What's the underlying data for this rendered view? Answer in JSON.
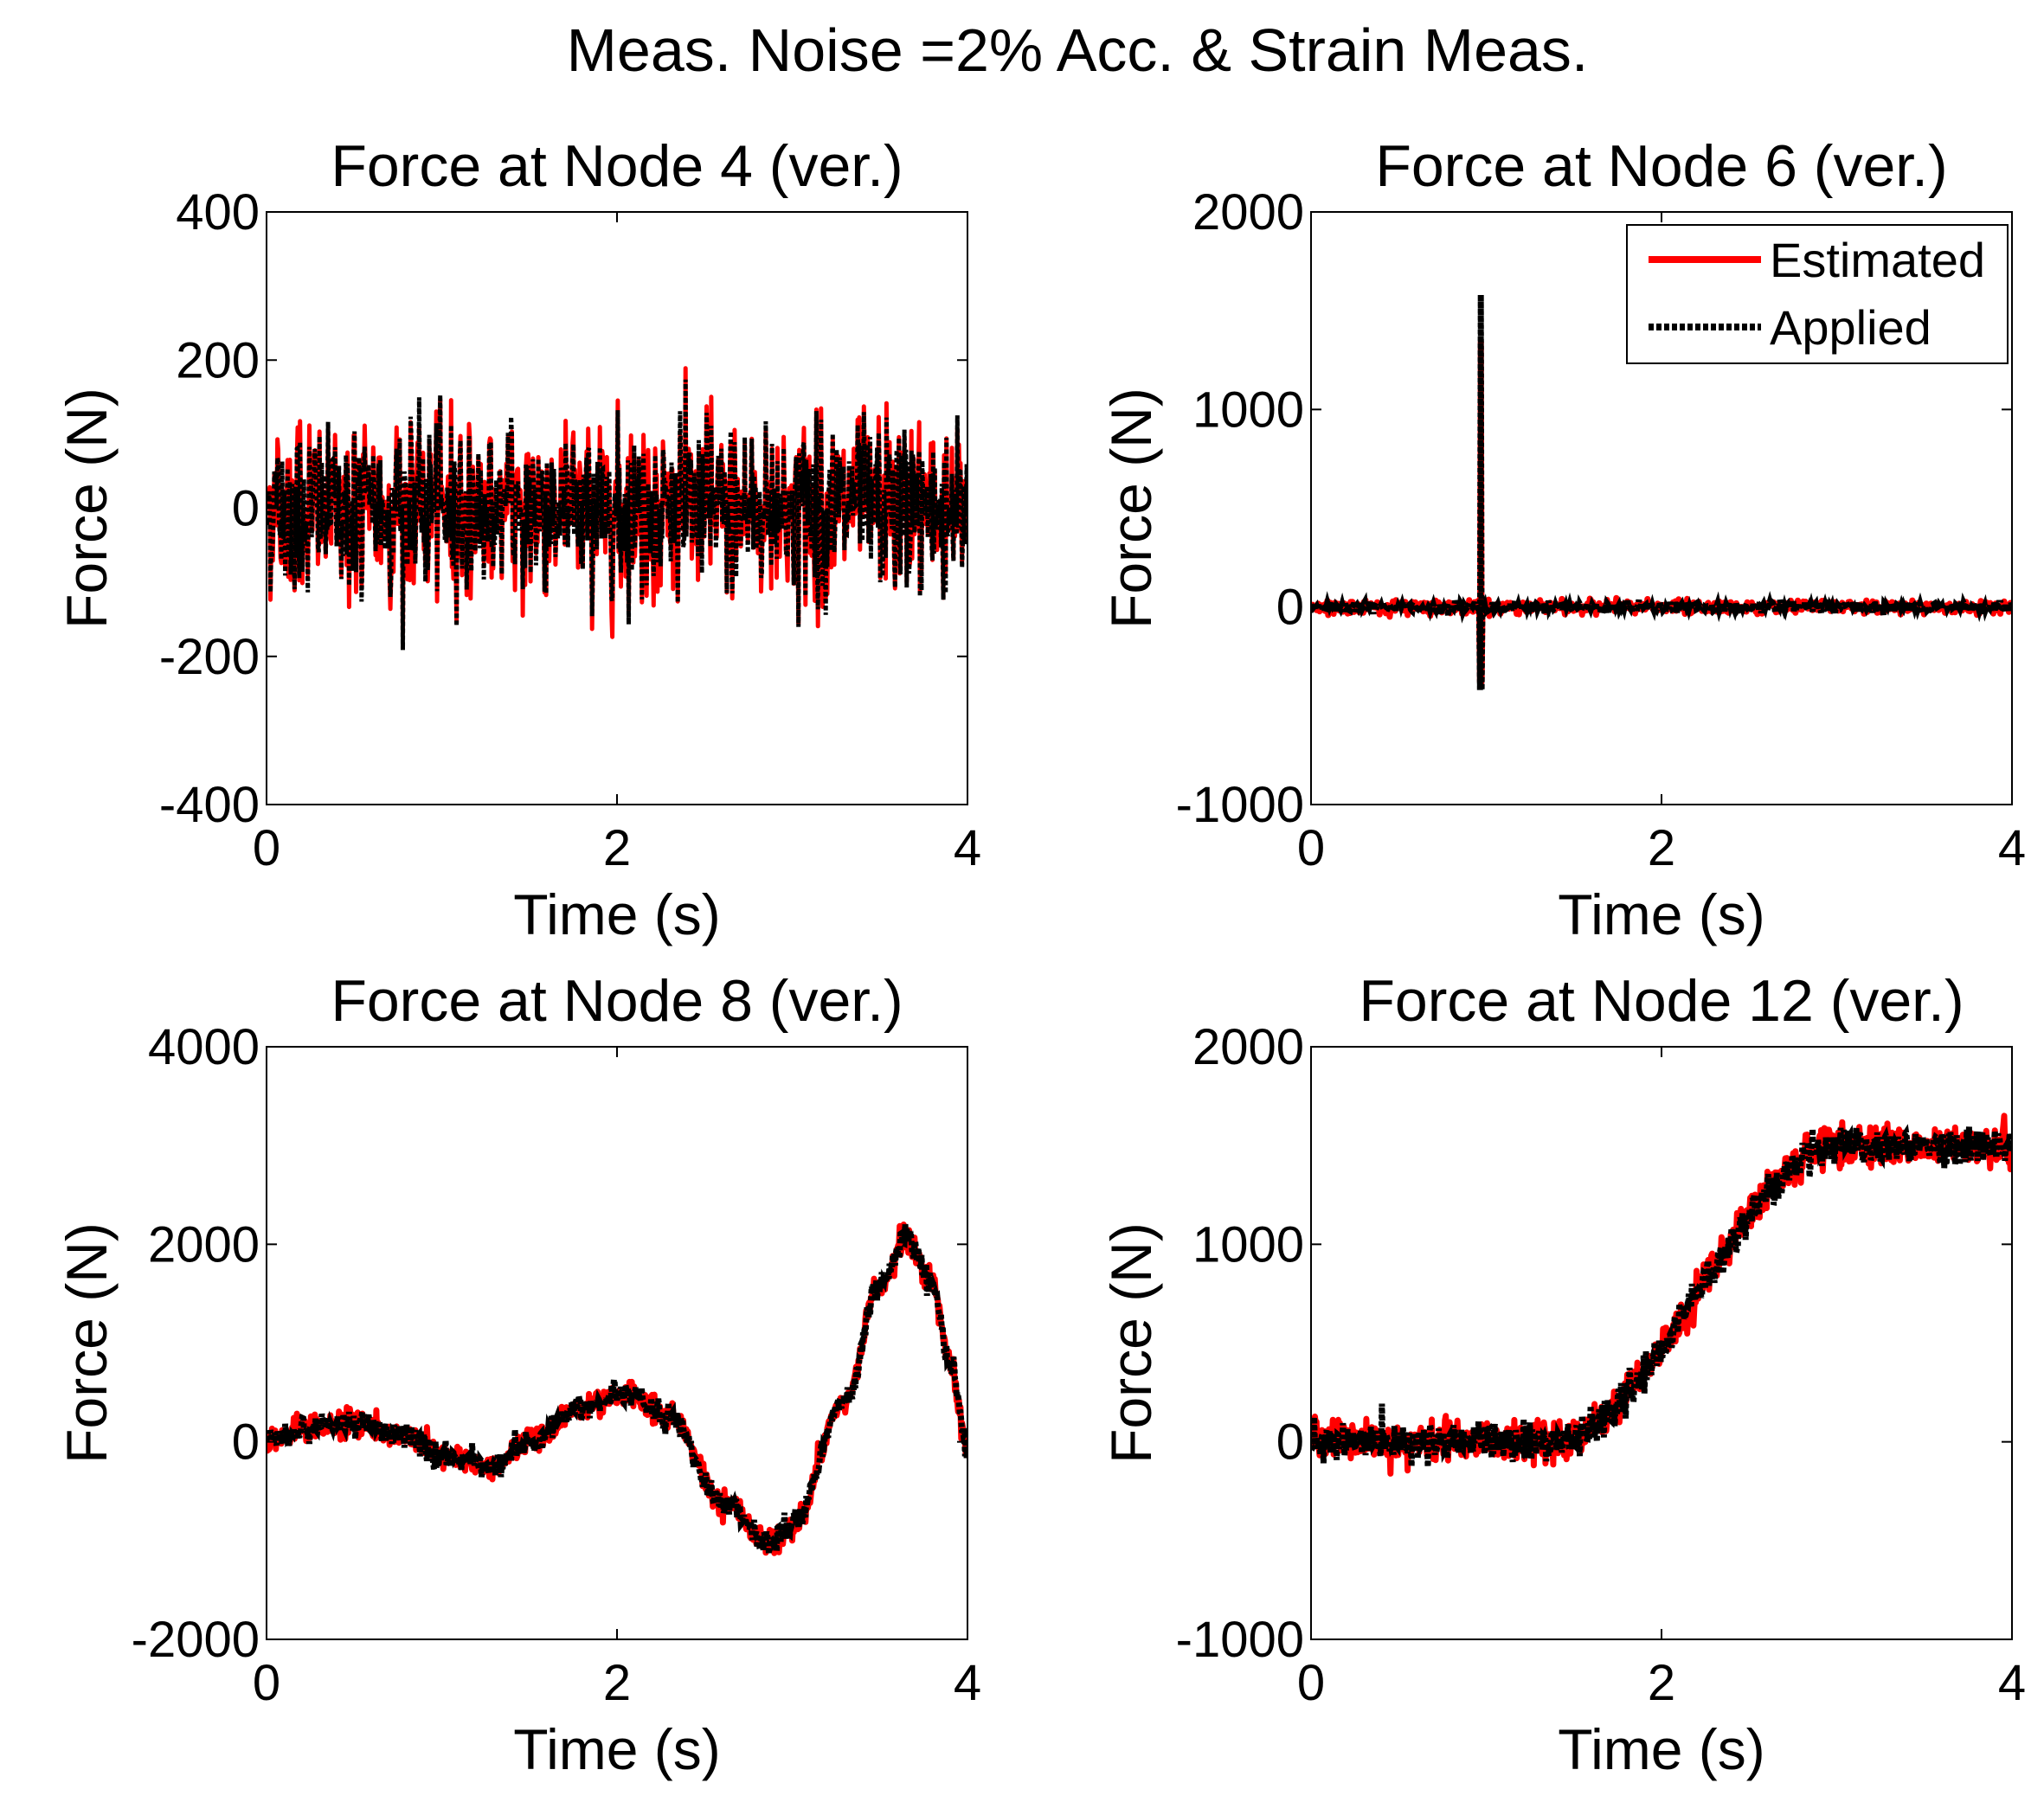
{
  "figure_title": "Meas. Noise =2%  Acc. & Strain Meas.",
  "colors": {
    "estimated": "#ff0000",
    "applied": "#000000",
    "axes": "#000000",
    "background": "#ffffff"
  },
  "legend": {
    "placement": "top-right of Node 6 panel",
    "entries": [
      "Estimated",
      "Applied"
    ]
  },
  "chart_data": [
    {
      "type": "line",
      "title": "Force at Node 4 (ver.)",
      "xlabel": "Time (s)",
      "ylabel": "Force (N)",
      "xlim": [
        0,
        4
      ],
      "ylim": [
        -400,
        400
      ],
      "xticks": [
        0,
        2,
        4
      ],
      "yticks": [
        -400,
        -200,
        0,
        200,
        400
      ],
      "xtick_labels": [
        "0",
        "2",
        "4"
      ],
      "ytick_labels": [
        "-400",
        "-200",
        "0",
        "200",
        "400"
      ],
      "signal": {
        "kind": "noise",
        "std": 55,
        "max_abs": 215
      },
      "series": [
        {
          "name": "Estimated",
          "style": "solid"
        },
        {
          "name": "Applied",
          "style": "dotted"
        }
      ]
    },
    {
      "type": "line",
      "title": "Force at Node 6 (ver.)",
      "xlabel": "Time (s)",
      "ylabel": "Force (N)",
      "xlim": [
        0,
        4
      ],
      "ylim": [
        -1000,
        2000
      ],
      "xticks": [
        0,
        2,
        4
      ],
      "yticks": [
        -1000,
        0,
        1000,
        2000
      ],
      "xtick_labels": [
        "0",
        "2",
        "4"
      ],
      "ytick_labels": [
        "-1000",
        "0",
        "1000",
        "2000"
      ],
      "signal": {
        "kind": "impulse",
        "t": 0.97,
        "peak": 1580,
        "min": -420,
        "noise_std": 12
      },
      "series": [
        {
          "name": "Estimated",
          "style": "solid"
        },
        {
          "name": "Applied",
          "style": "dotted"
        }
      ],
      "legend": true
    },
    {
      "type": "line",
      "title": "Force at Node 8 (ver.)",
      "xlabel": "Time (s)",
      "ylabel": "Force (N)",
      "xlim": [
        0,
        4
      ],
      "ylim": [
        -2000,
        4000
      ],
      "xticks": [
        0,
        2,
        4
      ],
      "yticks": [
        -2000,
        0,
        2000,
        4000
      ],
      "xtick_labels": [
        "0",
        "2",
        "4"
      ],
      "ytick_labels": [
        "-2000",
        "0",
        "2000",
        "4000"
      ],
      "signal": {
        "kind": "curve",
        "noise_std": 60,
        "t": [
          0,
          0.3,
          0.5,
          0.8,
          1.0,
          1.3,
          1.5,
          1.8,
          2.05,
          2.3,
          2.6,
          2.85,
          3.0,
          3.3,
          3.5,
          3.65,
          3.8,
          3.9,
          4.0
        ],
        "y": [
          50,
          150,
          200,
          50,
          -150,
          -250,
          0,
          350,
          500,
          250,
          -600,
          -1000,
          -850,
          400,
          1600,
          2050,
          1600,
          800,
          -50
        ]
      },
      "series": [
        {
          "name": "Estimated",
          "style": "solid"
        },
        {
          "name": "Applied",
          "style": "dotted"
        }
      ]
    },
    {
      "type": "line",
      "title": "Force at Node 12 (ver.)",
      "xlabel": "Time (s)",
      "ylabel": "Force (N)",
      "xlim": [
        0,
        4
      ],
      "ylim": [
        -1000,
        2000
      ],
      "xticks": [
        0,
        2,
        4
      ],
      "yticks": [
        -1000,
        0,
        1000,
        2000
      ],
      "xtick_labels": [
        "0",
        "2",
        "4"
      ],
      "ytick_labels": [
        "-1000",
        "0",
        "1000",
        "2000"
      ],
      "signal": {
        "kind": "curve",
        "noise_std": 45,
        "t": [
          0,
          1.35,
          3.05,
          4.0
        ],
        "y": [
          0,
          0,
          1500,
          1500
        ]
      },
      "series": [
        {
          "name": "Estimated",
          "style": "solid"
        },
        {
          "name": "Applied",
          "style": "dotted"
        }
      ]
    }
  ]
}
